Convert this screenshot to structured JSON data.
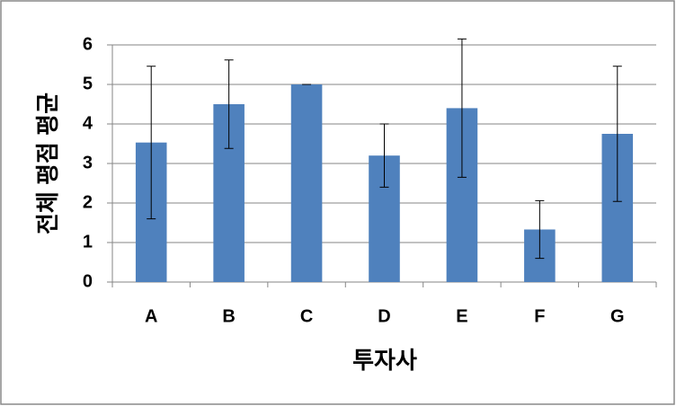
{
  "chart_data": {
    "type": "bar",
    "x_label": "투자사",
    "y_label": "전체 평점 평균",
    "categories": [
      "A",
      "B",
      "C",
      "D",
      "E",
      "F",
      "G"
    ],
    "values": [
      3.53,
      4.5,
      5.0,
      3.2,
      4.4,
      1.33,
      3.75
    ],
    "errors": [
      1.93,
      1.12,
      0,
      0.8,
      1.75,
      0.73,
      1.71
    ],
    "color": "#4f81bd",
    "ylim": [
      0,
      6
    ],
    "yticks": [
      0,
      1,
      2,
      3,
      4,
      5,
      6
    ],
    "grid": true
  }
}
